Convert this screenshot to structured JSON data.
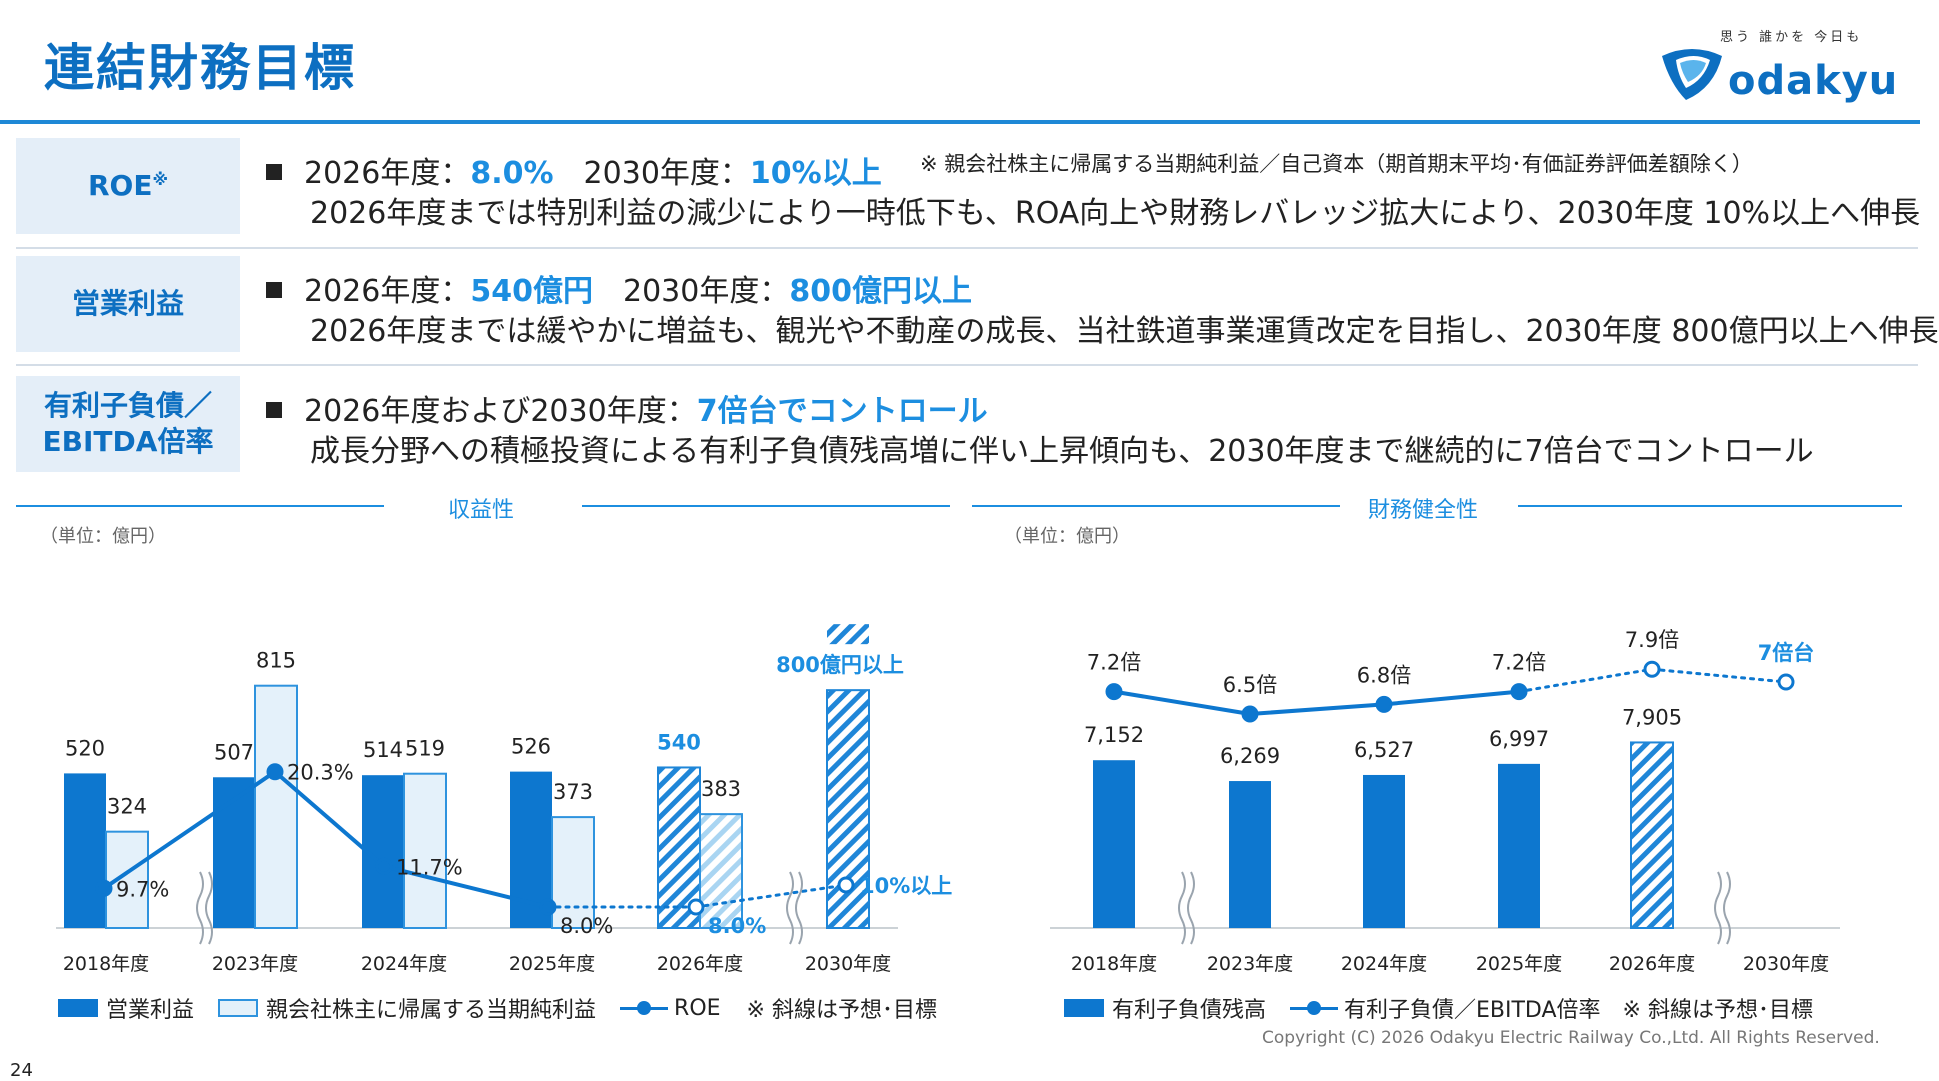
{
  "header": {
    "title": "連結財務目標",
    "logo_tagline": "思う 誰かを 今日も",
    "logo_text": "odakyu"
  },
  "rows": [
    {
      "label": "ROE",
      "label_sup": "※",
      "line1_prefix": "2026年度：",
      "line1_val1": "8.0%",
      "line1_mid": "　2030年度：",
      "line1_val2": "10%以上",
      "note": "※ 親会社株主に帰属する当期純利益／自己資本（期首期末平均･有価証券評価差額除く）",
      "line2": "2026年度までは特別利益の減少により一時低下も、ROA向上や財務レバレッジ拡大により、2030年度 10%以上へ伸長"
    },
    {
      "label": "営業利益",
      "line1_prefix": "2026年度：",
      "line1_val1": "540億円",
      "line1_mid": "　2030年度：",
      "line1_val2": "800億円以上",
      "line2": "2026年度までは緩やかに増益も、観光や不動産の成長、当社鉄道事業運賃改定を目指し、2030年度 800億円以上へ伸長"
    },
    {
      "label_l1": "有利子負債／",
      "label_l2": "EBITDA倍率",
      "line1_prefix": "2026年度および2030年度：",
      "line1_val1": "7倍台でコントロール",
      "line2": "成長分野への積極投資による有利子負債残高増に伴い上昇傾向も、2030年度まで継続的に7倍台でコントロール"
    }
  ],
  "sections": {
    "left_title": "収益性",
    "right_title": "財務健全性",
    "unit": "（単位：億円）"
  },
  "chart_data": [
    {
      "type": "bar",
      "categories": [
        "2018年度",
        "2023年度",
        "2024年度",
        "2025年度",
        "2026年度",
        "2030年度"
      ],
      "series": [
        {
          "name": "営業利益",
          "values": [
            520,
            507,
            514,
            526,
            540,
            null
          ],
          "labels": [
            "520",
            "507",
            "514",
            "526",
            "540",
            ""
          ]
        },
        {
          "name": "親会社株主に帰属する当期純利益",
          "values": [
            324,
            815,
            519,
            373,
            383,
            null
          ],
          "labels": [
            "324",
            "815",
            "519",
            "373",
            "383",
            ""
          ]
        },
        {
          "name": "ROE",
          "values": [
            9.7,
            20.3,
            11.7,
            8.0,
            8.0,
            10.0
          ],
          "labels": [
            "9.7%",
            "20.3%",
            "11.7%",
            "8.0%",
            "8.0%",
            "10%以上"
          ]
        }
      ],
      "target": {
        "category": "2030年度",
        "value": 800,
        "label": "800億円以上"
      },
      "forecast_categories": [
        "2026年度",
        "2030年度"
      ],
      "legend": [
        "営業利益",
        "親会社株主に帰属する当期純利益",
        "ROE",
        "※ 斜線は予想･目標"
      ],
      "ylim": [
        0,
        900
      ]
    },
    {
      "type": "bar",
      "categories": [
        "2018年度",
        "2023年度",
        "2024年度",
        "2025年度",
        "2026年度",
        "2030年度"
      ],
      "series": [
        {
          "name": "有利子負債残高",
          "values": [
            7152,
            6269,
            6527,
            6997,
            7905,
            null
          ],
          "labels": [
            "7,152",
            "6,269",
            "6,527",
            "6,997",
            "7,905",
            ""
          ]
        },
        {
          "name": "有利子負債／EBITDA倍率",
          "values": [
            7.2,
            6.5,
            6.8,
            7.2,
            7.9,
            7.5
          ],
          "labels": [
            "7.2倍",
            "6.5倍",
            "6.8倍",
            "7.2倍",
            "7.9倍",
            "7倍台"
          ]
        }
      ],
      "forecast_categories": [
        "2026年度",
        "2030年度"
      ],
      "legend": [
        "有利子負債残高",
        "有利子負債／EBITDA倍率",
        "※ 斜線は予想･目標"
      ]
    }
  ],
  "footer": {
    "copyright": "Copyright (C) 2026 Odakyu Electric Railway Co.,Ltd. All Rights Reserved.",
    "page": "24"
  },
  "colors": {
    "accent": "#0d6fc1",
    "highlight": "#1c8ee0",
    "bar_solid": "#0d77cf",
    "bar_light": "#e4f1fa",
    "label_bg": "#e4eef8"
  }
}
